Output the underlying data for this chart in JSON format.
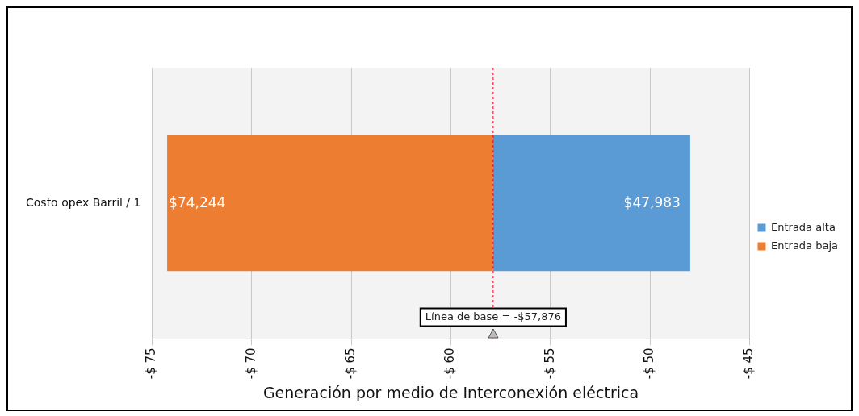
{
  "chart_data": {
    "type": "bar",
    "orientation": "horizontal",
    "xlabel": "Generación por medio de Interconexión eléctrica",
    "categories": [
      "Costo opex Barril / 1"
    ],
    "series": [
      {
        "name": "Entrada alta",
        "color": "#5b9bd5",
        "values": [
          9.893
        ],
        "base": [
          -57.876
        ]
      },
      {
        "name": "Entrada baja",
        "color": "#ed7d31",
        "values": [
          -16.368
        ],
        "base": [
          -57.876
        ]
      }
    ],
    "annotations": [
      {
        "text": "$47,983",
        "x": -47.983
      },
      {
        "text": "$74,244",
        "x": -74.244
      }
    ],
    "xlim": [
      -75,
      -45
    ],
    "xticks": [
      {
        "value": -75,
        "label": "-$ 75"
      },
      {
        "value": -70,
        "label": "-$ 70"
      },
      {
        "value": -65,
        "label": "-$ 65"
      },
      {
        "value": -60,
        "label": "-$ 60"
      },
      {
        "value": -55,
        "label": "-$ 55"
      },
      {
        "value": -50,
        "label": "-$ 50"
      },
      {
        "value": -45,
        "label": "-$ 45"
      }
    ],
    "ref_lines": [
      {
        "axis": "x",
        "value": -57.876,
        "label": "Línea de base = -$57,876",
        "color": "#e8001c",
        "line_style": "dashed"
      }
    ],
    "grid": "x",
    "legend": "right"
  }
}
